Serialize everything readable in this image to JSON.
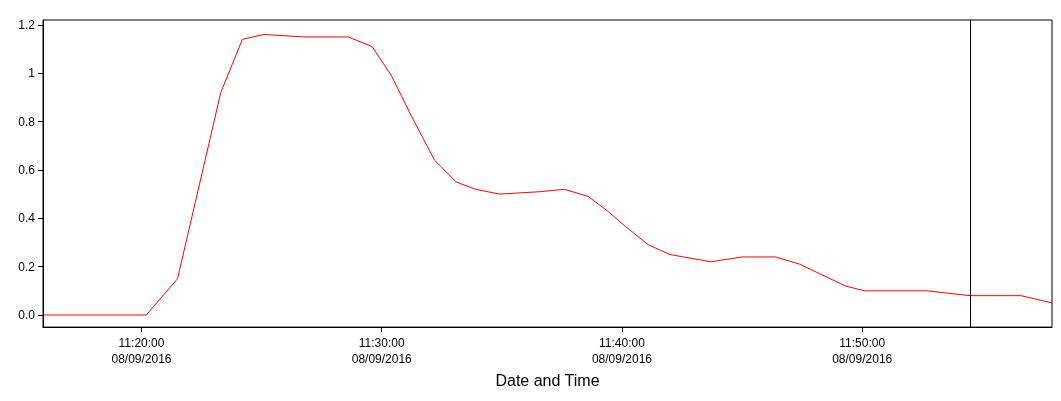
{
  "chart_data": {
    "type": "line",
    "xlabel": "Date and Time",
    "x": [
      "2016-08-09T11:15:54",
      "2016-08-09T11:20:12",
      "2016-08-09T11:21:30",
      "2016-08-09T11:23:18",
      "2016-08-09T11:24:12",
      "2016-08-09T11:25:06",
      "2016-08-09T11:26:45",
      "2016-08-09T11:28:36",
      "2016-08-09T11:29:36",
      "2016-08-09T11:30:24",
      "2016-08-09T11:31:15",
      "2016-08-09T11:32:12",
      "2016-08-09T11:33:06",
      "2016-08-09T11:33:54",
      "2016-08-09T11:34:54",
      "2016-08-09T11:36:36",
      "2016-08-09T11:37:36",
      "2016-08-09T11:38:36",
      "2016-08-09T11:39:24",
      "2016-08-09T11:40:06",
      "2016-08-09T11:41:06",
      "2016-08-09T11:42:00",
      "2016-08-09T11:43:42",
      "2016-08-09T11:45:00",
      "2016-08-09T11:46:24",
      "2016-08-09T11:47:24",
      "2016-08-09T11:49:18",
      "2016-08-09T11:50:06",
      "2016-08-09T11:52:42",
      "2016-08-09T11:54:30",
      "2016-08-09T11:56:36",
      "2016-08-09T11:57:54"
    ],
    "series": [
      {
        "color": "#ff0000",
        "values": [
          0,
          0,
          0.15,
          0.92,
          1.14,
          1.16,
          1.15,
          1.15,
          1.11,
          0.99,
          0.82,
          0.64,
          0.55,
          0.52,
          0.5,
          0.51,
          0.52,
          0.49,
          0.43,
          0.37,
          0.29,
          0.25,
          0.22,
          0.24,
          0.24,
          0.21,
          0.12,
          0.1,
          0.1,
          0.08,
          0.08,
          0.05
        ]
      }
    ],
    "xlim": [
      "2016-08-09T11:15:54",
      "2016-08-09T11:57:54"
    ],
    "xticks": [
      {
        "value": "2016-08-09T11:20",
        "label": "11:20:00\n08/09/2016"
      },
      {
        "value": "2016-08-09T11:30",
        "label": "11:30:00\n08/09/2016"
      },
      {
        "value": "2016-08-09T11:40",
        "label": "11:40:00\n08/09/2016"
      },
      {
        "value": "2016-08-09T11:50",
        "label": "11:50:00\n08/09/2016"
      }
    ],
    "ylim": [
      -0.05,
      1.22
    ],
    "yticks": [
      {
        "value": 0,
        "label": "0.0"
      },
      0.2,
      0.4,
      0.6,
      0.8,
      1,
      1.2
    ],
    "ref_lines": [
      {
        "axis": "x",
        "value": "2016-08-09T11:54:30",
        "color": "#000000"
      }
    ],
    "grid": false,
    "marker": "none",
    "line_style": "solid"
  }
}
